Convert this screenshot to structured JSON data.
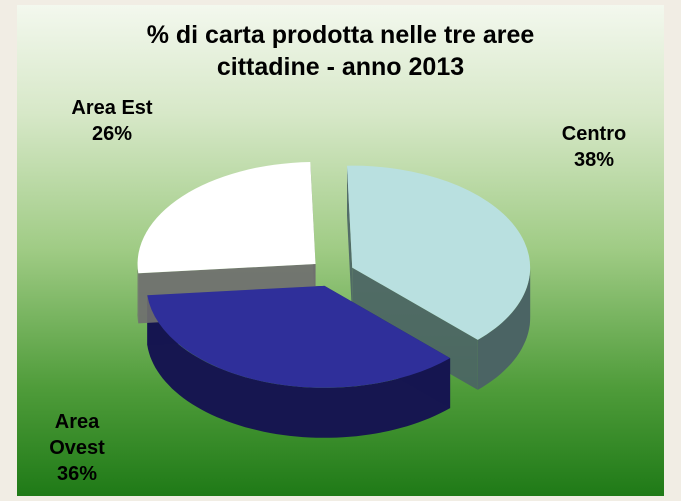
{
  "chart_data": {
    "type": "pie",
    "title_lines": [
      "% di carta prodotta nelle tre aree",
      "cittadine - anno 2013"
    ],
    "slices": [
      {
        "label_lines": [
          "Centro"
        ],
        "value": 38,
        "value_label": "38%",
        "color": "#b9e0e0",
        "side_color": "#4b6464"
      },
      {
        "label_lines": [
          "Area",
          "Ovest"
        ],
        "value": 36,
        "value_label": "36%",
        "color": "#2f2f9a",
        "side_color": "#161650"
      },
      {
        "label_lines": [
          "Area Est"
        ],
        "value": 26,
        "value_label": "26%",
        "color": "#ffffff",
        "side_color": "#6f6f6f"
      }
    ],
    "exploded": true,
    "three_d": true,
    "legend": "none"
  }
}
